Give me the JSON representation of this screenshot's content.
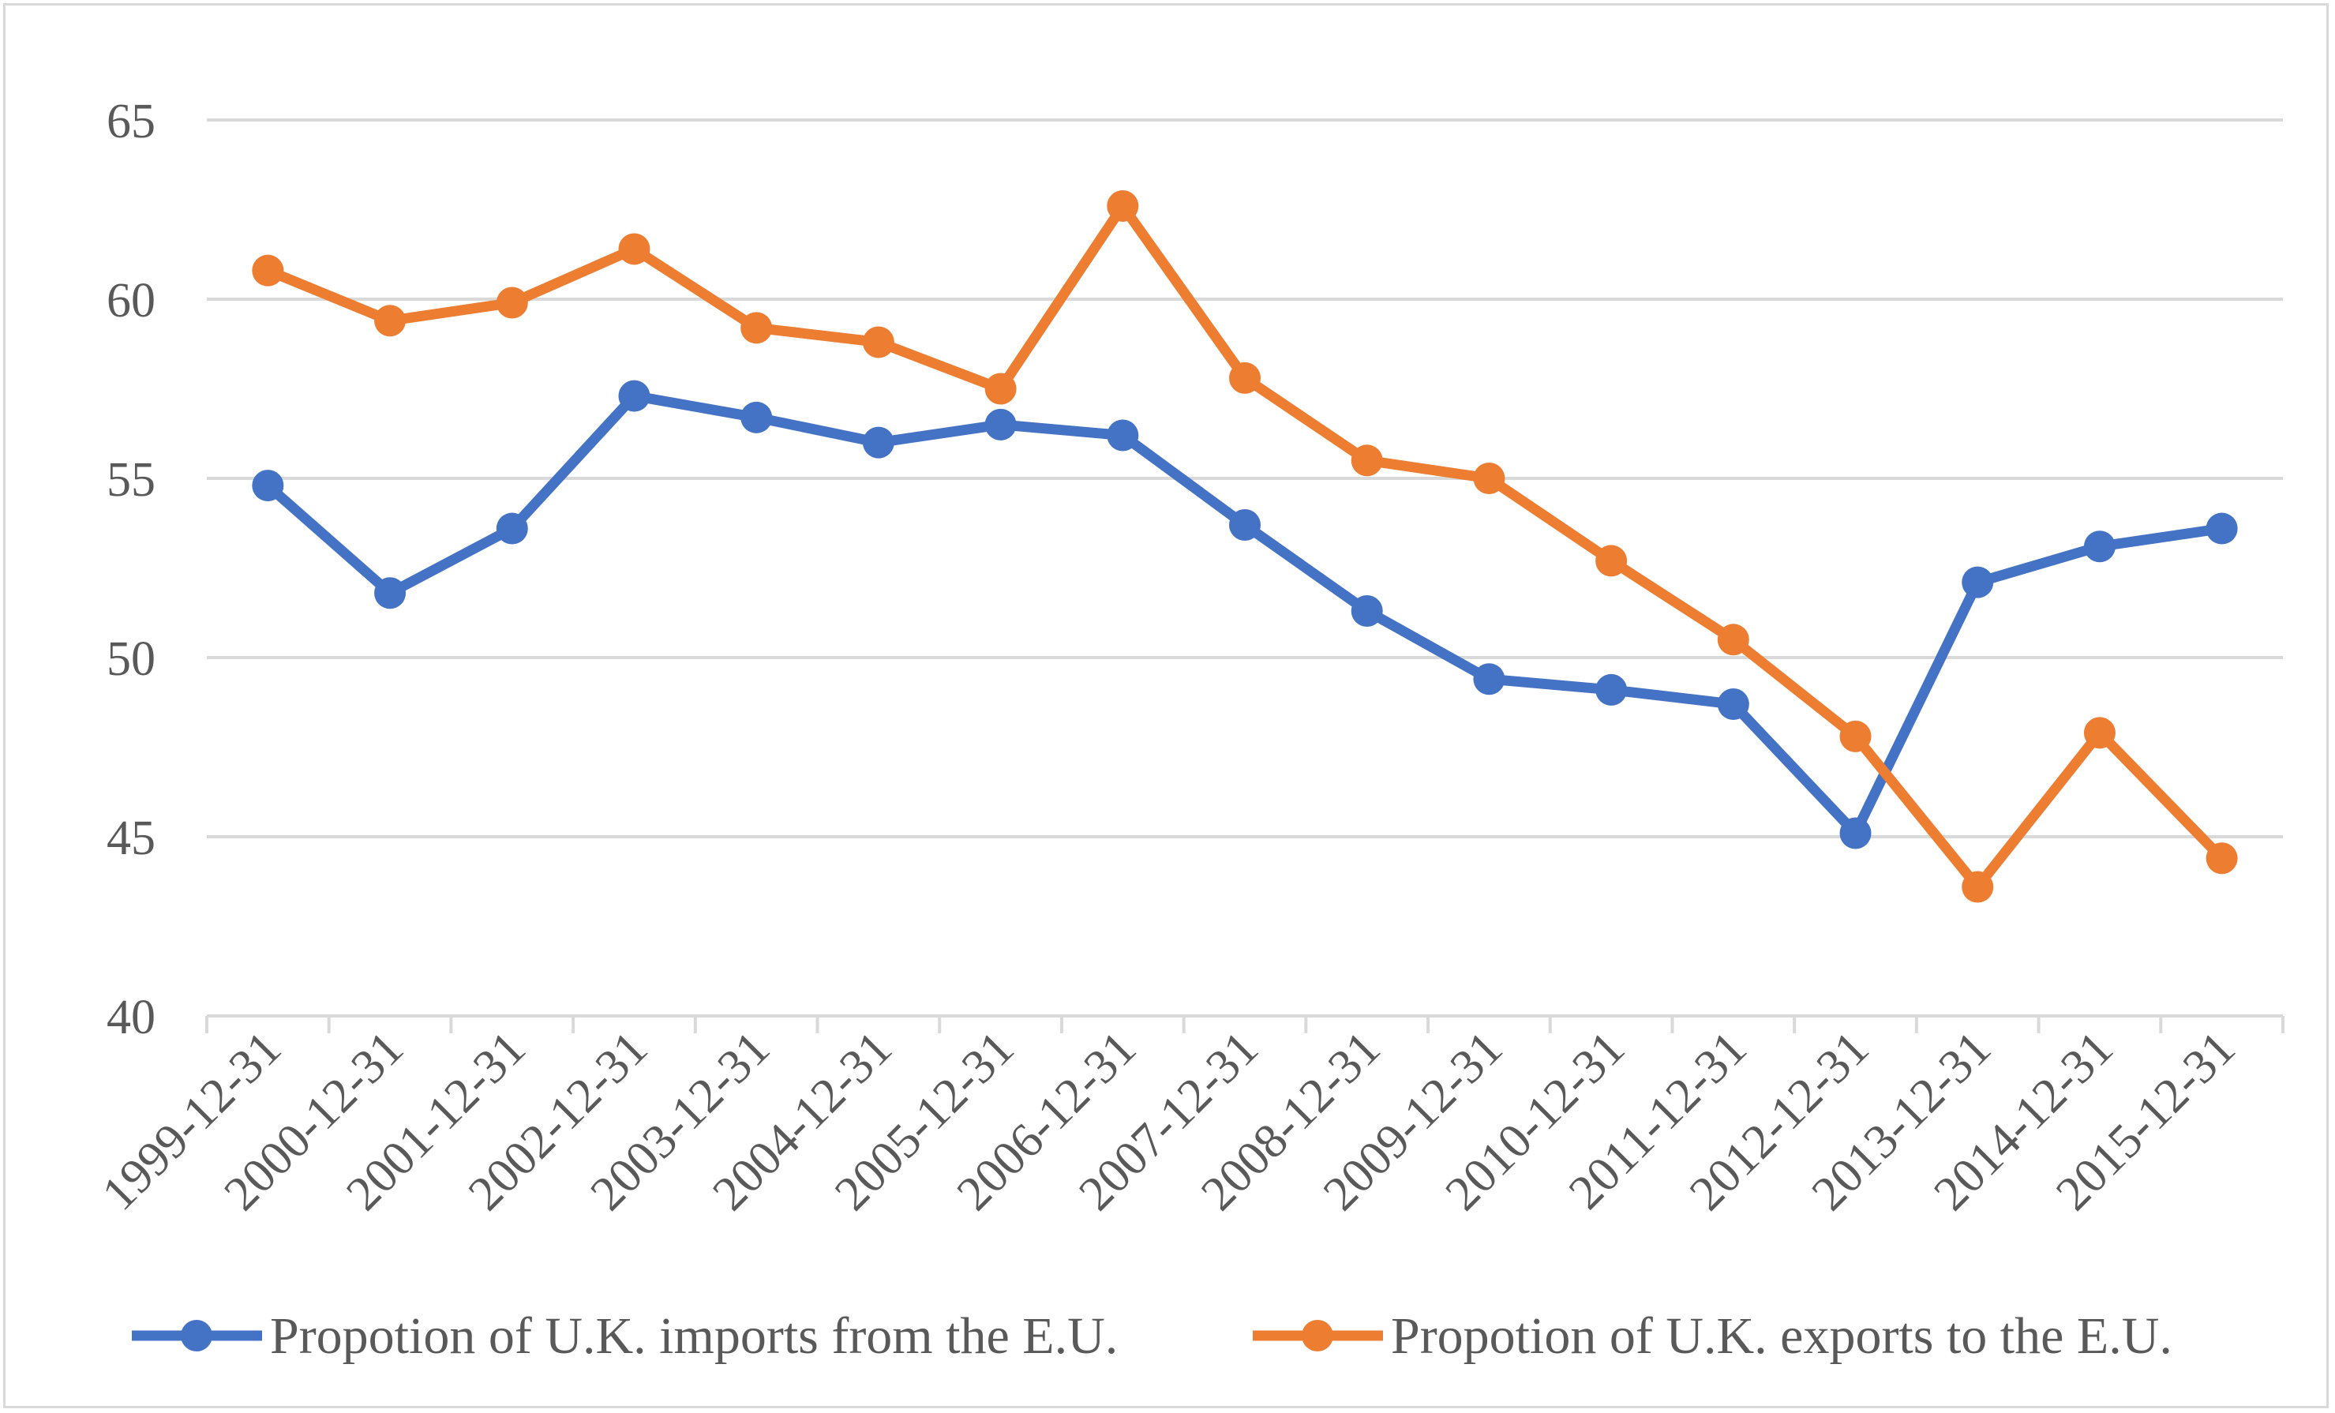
{
  "chart_data": {
    "type": "line",
    "title": "",
    "xlabel": "",
    "ylabel": "",
    "categories": [
      "1999-12-31",
      "2000-12-31",
      "2001-12-31",
      "2002-12-31",
      "2003-12-31",
      "2004-12-31",
      "2005-12-31",
      "2006-12-31",
      "2007-12-31",
      "2008-12-31",
      "2009-12-31",
      "2010-12-31",
      "2011-12-31",
      "2012-12-31",
      "2013-12-31",
      "2014-12-31",
      "2015-12-31"
    ],
    "ylim": [
      40,
      65
    ],
    "yticks": [
      "40",
      "45",
      "50",
      "55",
      "60",
      "65"
    ],
    "grid": true,
    "legend_position": "bottom",
    "series": [
      {
        "name": "Propotion of U.K. imports from the E.U.",
        "color": "#4472C4",
        "values": [
          54.8,
          51.8,
          53.6,
          57.3,
          56.7,
          56.0,
          56.5,
          56.2,
          53.7,
          51.3,
          49.4,
          49.1,
          48.7,
          45.1,
          52.1,
          53.1,
          53.6
        ]
      },
      {
        "name": "Propotion of U.K. exports to the E.U.",
        "color": "#ED7D31",
        "values": [
          60.8,
          59.4,
          59.9,
          61.4,
          59.2,
          58.8,
          57.5,
          62.6,
          57.8,
          55.5,
          55.0,
          52.7,
          50.5,
          47.8,
          43.6,
          47.9,
          44.4
        ]
      }
    ]
  }
}
